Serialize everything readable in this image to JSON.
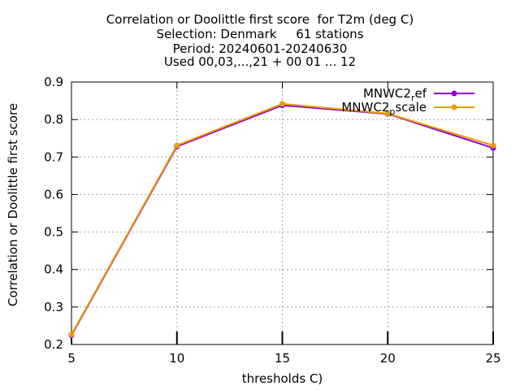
{
  "chart_data": {
    "type": "line",
    "title_lines": [
      "Correlation or Doolittle first score  for T2m (deg C)",
      "Selection: Denmark     61 stations",
      "Period: 20240601-20240630",
      "Used 00,03,...,21 + 00 01 ... 12"
    ],
    "xlabel": "thresholds C)",
    "ylabel": "Correlation or Doolittle first score",
    "x": [
      5,
      10,
      15,
      20,
      25
    ],
    "xlim": [
      5,
      25
    ],
    "ylim": [
      0.2,
      0.9
    ],
    "x_ticks": [
      "5",
      "10",
      "15",
      "20",
      "25"
    ],
    "y_ticks": [
      "0.2",
      "0.3",
      "0.4",
      "0.5",
      "0.6",
      "0.7",
      "0.8",
      "0.9"
    ],
    "grid": true,
    "legend_position": "top-right",
    "series": [
      {
        "name": "MNWC2_ref",
        "legend_main": "MNWC2",
        "legend_sub": "r",
        "legend_rest": "ef",
        "color": "#9400d3",
        "values": [
          0.225,
          0.728,
          0.838,
          0.815,
          0.724
        ]
      },
      {
        "name": "MNWC2_pscale",
        "legend_main": "MNWC2",
        "legend_sub": "p",
        "legend_rest": "scale",
        "color": "#e69f00",
        "values": [
          0.227,
          0.731,
          0.842,
          0.816,
          0.731
        ]
      }
    ]
  }
}
